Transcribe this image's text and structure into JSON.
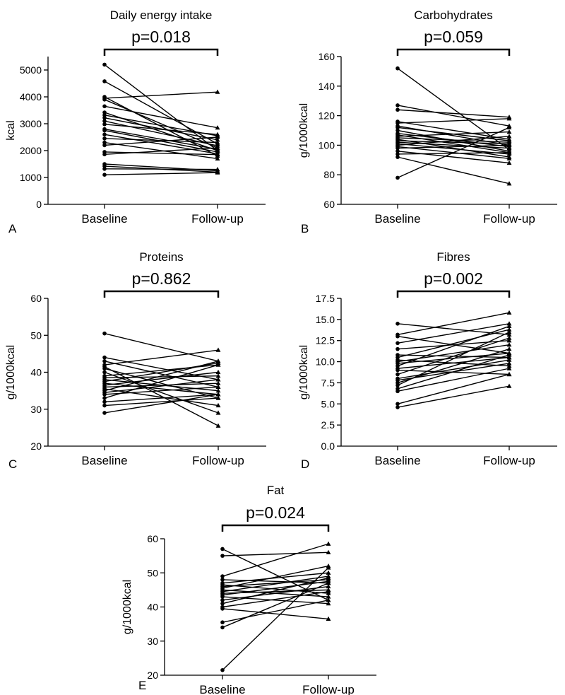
{
  "chart_data": [
    {
      "type": "line",
      "panel_letter": "A",
      "title": "Daily energy intake",
      "ylabel": "kcal",
      "xlabel": "",
      "categories": [
        "Baseline",
        "Follow-up"
      ],
      "ylim": [
        0,
        5500
      ],
      "yticks": [
        0,
        1000,
        2000,
        3000,
        4000,
        5000
      ],
      "ytick_labels": [
        "0",
        "1000",
        "2000",
        "3000",
        "4000",
        "5000"
      ],
      "p_value": "p=0.018",
      "markers": [
        "circle",
        "triangle"
      ],
      "pairs": [
        [
          5200,
          2000
        ],
        [
          4580,
          2250
        ],
        [
          4000,
          1800
        ],
        [
          3950,
          4180
        ],
        [
          3900,
          2100
        ],
        [
          3650,
          2850
        ],
        [
          3420,
          2000
        ],
        [
          3320,
          2550
        ],
        [
          3220,
          2400
        ],
        [
          3100,
          2180
        ],
        [
          2980,
          2600
        ],
        [
          2800,
          2050
        ],
        [
          2750,
          1950
        ],
        [
          2600,
          1880
        ],
        [
          2450,
          2300
        ],
        [
          2300,
          1700
        ],
        [
          2200,
          2500
        ],
        [
          1950,
          1850
        ],
        [
          1860,
          2100
        ],
        [
          1500,
          1250
        ],
        [
          1420,
          1200
        ],
        [
          1320,
          1300
        ],
        [
          1100,
          1180
        ]
      ]
    },
    {
      "type": "line",
      "panel_letter": "B",
      "title": "Carbohydrates",
      "ylabel": "g/1000kcal",
      "xlabel": "",
      "categories": [
        "Baseline",
        "Follow-up"
      ],
      "ylim": [
        60,
        160
      ],
      "yticks": [
        60,
        80,
        100,
        120,
        140,
        160
      ],
      "ytick_labels": [
        "60",
        "80",
        "100",
        "120",
        "140",
        "160"
      ],
      "p_value": "p=0.059",
      "markers": [
        "circle",
        "triangle"
      ],
      "pairs": [
        [
          152,
          97
        ],
        [
          127,
          113
        ],
        [
          124,
          119
        ],
        [
          116,
          104
        ],
        [
          115,
          118
        ],
        [
          113,
          100
        ],
        [
          112,
          103
        ],
        [
          110,
          96
        ],
        [
          108,
          99
        ],
        [
          107,
          95
        ],
        [
          106,
          109
        ],
        [
          105,
          102
        ],
        [
          104,
          92
        ],
        [
          103,
          101
        ],
        [
          102,
          98
        ],
        [
          101,
          94
        ],
        [
          100,
          106
        ],
        [
          99,
          91
        ],
        [
          98,
          100
        ],
        [
          96,
          88
        ],
        [
          94,
          95
        ],
        [
          92,
          74
        ],
        [
          78,
          112
        ]
      ]
    },
    {
      "type": "line",
      "panel_letter": "C",
      "title": "Proteins",
      "ylabel": "g/1000kcal",
      "xlabel": "",
      "categories": [
        "Baseline",
        "Follow-up"
      ],
      "ylim": [
        20,
        60
      ],
      "yticks": [
        20,
        30,
        40,
        50,
        60
      ],
      "ytick_labels": [
        "20",
        "30",
        "40",
        "50",
        "60"
      ],
      "p_value": "p=0.862",
      "markers": [
        "circle",
        "triangle"
      ],
      "pairs": [
        [
          50.5,
          43
        ],
        [
          44,
          38
        ],
        [
          43,
          36
        ],
        [
          42,
          46
        ],
        [
          41,
          33
        ],
        [
          40,
          29
        ],
        [
          39,
          42
        ],
        [
          38.5,
          39
        ],
        [
          38,
          35
        ],
        [
          37.5,
          42.5
        ],
        [
          37,
          34
        ],
        [
          36.5,
          40
        ],
        [
          36,
          37
        ],
        [
          35.5,
          31
        ],
        [
          35,
          43
        ],
        [
          34.5,
          38
        ],
        [
          34,
          36
        ],
        [
          33,
          42
        ],
        [
          32,
          34
        ],
        [
          31,
          33
        ],
        [
          29,
          34
        ],
        [
          41.5,
          25.5
        ]
      ]
    },
    {
      "type": "line",
      "panel_letter": "D",
      "title": "Fibres",
      "ylabel": "g/1000kcal",
      "xlabel": "",
      "categories": [
        "Baseline",
        "Follow-up"
      ],
      "ylim": [
        0,
        17.5
      ],
      "yticks": [
        0,
        2.5,
        5,
        7.5,
        10,
        12.5,
        15,
        17.5
      ],
      "ytick_labels": [
        "0.0",
        "2.5",
        "5.0",
        "7.5",
        "10.0",
        "12.5",
        "15.0",
        "17.5"
      ],
      "p_value": "p=0.002",
      "markers": [
        "circle",
        "triangle"
      ],
      "pairs": [
        [
          14.5,
          13.2
        ],
        [
          13.2,
          15.8
        ],
        [
          13.0,
          11.0
        ],
        [
          12.2,
          14.5
        ],
        [
          11.5,
          12.5
        ],
        [
          10.8,
          10.5
        ],
        [
          10.5,
          13.8
        ],
        [
          10.2,
          9.5
        ],
        [
          10.0,
          12.0
        ],
        [
          9.8,
          11.0
        ],
        [
          9.5,
          14.2
        ],
        [
          9.2,
          10.5
        ],
        [
          9.0,
          8.5
        ],
        [
          8.5,
          12.8
        ],
        [
          8.0,
          10.2
        ],
        [
          7.8,
          9.8
        ],
        [
          7.5,
          11.5
        ],
        [
          7.2,
          13.5
        ],
        [
          6.8,
          10.8
        ],
        [
          6.5,
          9.2
        ],
        [
          5.0,
          8.5
        ],
        [
          4.6,
          7.1
        ]
      ]
    },
    {
      "type": "line",
      "panel_letter": "E",
      "title": "Fat",
      "ylabel": "g/1000kcal",
      "xlabel": "",
      "categories": [
        "Baseline",
        "Follow-up"
      ],
      "ylim": [
        20,
        60
      ],
      "yticks": [
        20,
        30,
        40,
        50,
        60
      ],
      "ytick_labels": [
        "20",
        "30",
        "40",
        "50",
        "60"
      ],
      "p_value": "p=0.024",
      "markers": [
        "circle",
        "triangle"
      ],
      "pairs": [
        [
          57,
          42
        ],
        [
          55,
          56
        ],
        [
          49,
          58.5
        ],
        [
          48,
          47
        ],
        [
          47,
          50
        ],
        [
          46.5,
          44
        ],
        [
          46,
          48
        ],
        [
          45.5,
          52
        ],
        [
          45,
          43
        ],
        [
          44.5,
          49
        ],
        [
          44,
          45
        ],
        [
          43.5,
          47.5
        ],
        [
          43,
          41
        ],
        [
          42,
          46
        ],
        [
          41,
          48.5
        ],
        [
          40,
          44.5
        ],
        [
          39.5,
          36.5
        ],
        [
          35.5,
          42
        ],
        [
          34,
          47
        ],
        [
          21.5,
          51.5
        ]
      ]
    }
  ]
}
